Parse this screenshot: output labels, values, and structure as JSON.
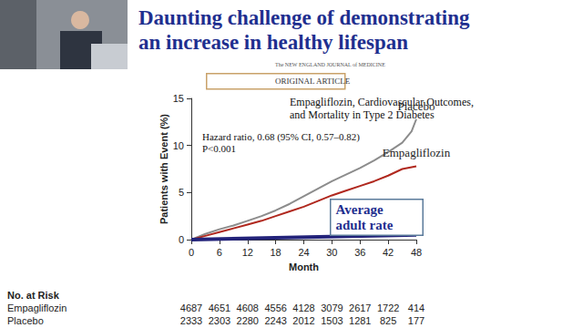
{
  "chart_data": {
    "type": "line",
    "title": "Daunting challenge of demonstrating\nan increase in healthy lifespan",
    "x_label": "Month",
    "y_label": "Patients with Event (%)",
    "xlim": [
      0,
      48
    ],
    "xticks": [
      0,
      6,
      12,
      18,
      24,
      30,
      36,
      42,
      48
    ],
    "ylim": [
      0,
      15
    ],
    "yticks": [
      0,
      5,
      10,
      15
    ],
    "grid": false,
    "annotations": {
      "journal": "The NEW ENGLAND JOURNAL of MEDICINE",
      "article_type": "ORIGINAL ARTICLE",
      "article_title": "Empagliflozin, Cardiovascular Outcomes,\nand Mortality in Type 2 Diabetes",
      "hazard_ratio": "Hazard ratio, 0.68 (95% CI, 0.57–0.82)",
      "p_value": "P<0.001"
    },
    "series": [
      {
        "name": "Placebo",
        "color": "#8c8c8c",
        "x": [
          0,
          3,
          6,
          9,
          12,
          15,
          18,
          21,
          24,
          27,
          30,
          33,
          36,
          39,
          42,
          45,
          47,
          48
        ],
        "values": [
          0,
          0.6,
          1.1,
          1.5,
          2.0,
          2.5,
          3.1,
          3.8,
          4.6,
          5.4,
          6.2,
          6.9,
          7.6,
          8.4,
          9.3,
          10.3,
          11.5,
          12.8
        ]
      },
      {
        "name": "Empagliflozin",
        "color": "#b0281e",
        "x": [
          0,
          3,
          6,
          9,
          12,
          15,
          18,
          21,
          24,
          27,
          30,
          33,
          36,
          39,
          42,
          45,
          48
        ],
        "values": [
          0,
          0.4,
          0.8,
          1.2,
          1.6,
          2.0,
          2.5,
          3.0,
          3.5,
          4.1,
          4.7,
          5.2,
          5.7,
          6.2,
          6.8,
          7.5,
          7.8
        ]
      },
      {
        "name": "Average adult rate",
        "color": "#23237a",
        "x": [
          0,
          48
        ],
        "values": [
          0,
          0.5
        ]
      }
    ],
    "at_risk": {
      "title": "No. at Risk",
      "x": [
        0,
        6,
        12,
        18,
        24,
        30,
        36,
        42,
        48
      ],
      "rows": [
        {
          "name": "Empagliflozin",
          "values": [
            4687,
            4651,
            4608,
            4556,
            4128,
            3079,
            2617,
            1722,
            414
          ]
        },
        {
          "name": "Placebo",
          "values": [
            2333,
            2303,
            2280,
            2243,
            2012,
            1503,
            1281,
            825,
            177
          ]
        }
      ]
    }
  }
}
